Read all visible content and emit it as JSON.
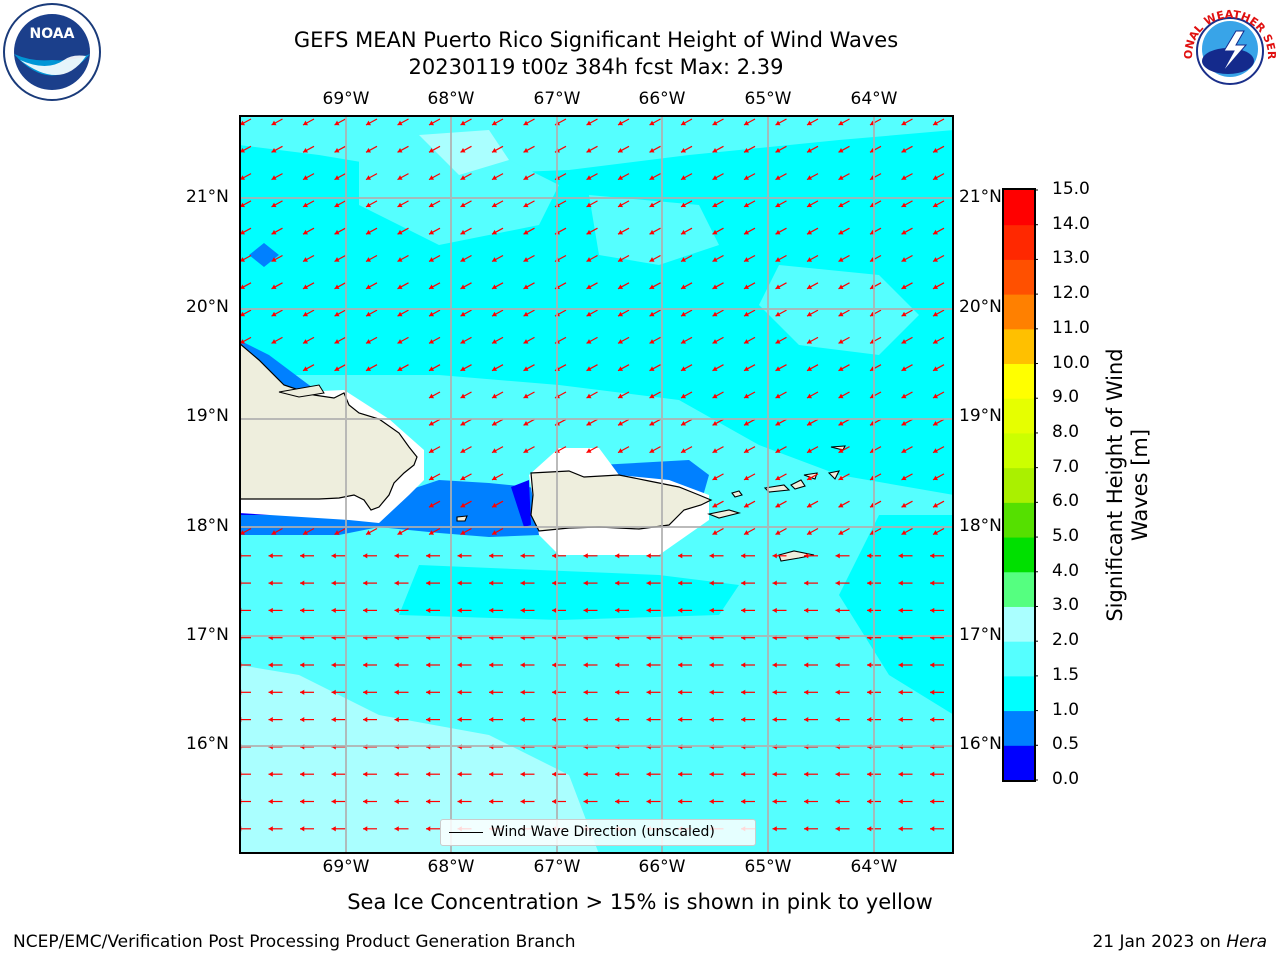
{
  "header": {
    "title_line1": "GEFS MEAN Puerto Rico Significant Height of Wind Waves",
    "title_line2": "20230119 t00z 384h fcst   Max: 2.39"
  },
  "map": {
    "lon_labels": [
      "69°W",
      "68°W",
      "67°W",
      "66°W",
      "65°W",
      "64°W"
    ],
    "lat_labels": [
      "21°N",
      "20°N",
      "19°N",
      "18°N",
      "17°N",
      "16°N"
    ],
    "ocean_color": "#00ffff",
    "land_color": "#eeeedd",
    "arrow_color": "#ff0000",
    "arrow_direction": "toward west-southwest",
    "legend_text": "Wind Wave Direction (unscaled)"
  },
  "colorbar": {
    "label_line1": "Significant Height of Wind",
    "label_line2": "Waves [m]",
    "ticks": [
      "15.0",
      "14.0",
      "13.0",
      "12.0",
      "11.0",
      "10.0",
      "9.0",
      "8.0",
      "7.0",
      "6.0",
      "5.0",
      "4.0",
      "3.0",
      "2.0",
      "1.5",
      "1.0",
      "0.5",
      "0.0"
    ],
    "colors_bottom_to_top": [
      "#0000ff",
      "#0080ff",
      "#00ffff",
      "#55ffff",
      "#aaffff",
      "#55ff80",
      "#00e000",
      "#55e000",
      "#aaf000",
      "#ccff00",
      "#e6ff00",
      "#ffff00",
      "#ffc000",
      "#ff8000",
      "#ff5000",
      "#ff2800",
      "#ff0000"
    ]
  },
  "subtitle": "Sea Ice Concentration > 15% is shown in pink to yellow",
  "footer": {
    "left": "NCEP/EMC/Verification Post Processing Product Generation Branch",
    "right_prefix": "21 Jan 2023 on ",
    "right_host": "Hera"
  },
  "logos": {
    "noaa_text": "NOAA",
    "nws_text": "NATIONAL WEATHER SERVICE"
  }
}
